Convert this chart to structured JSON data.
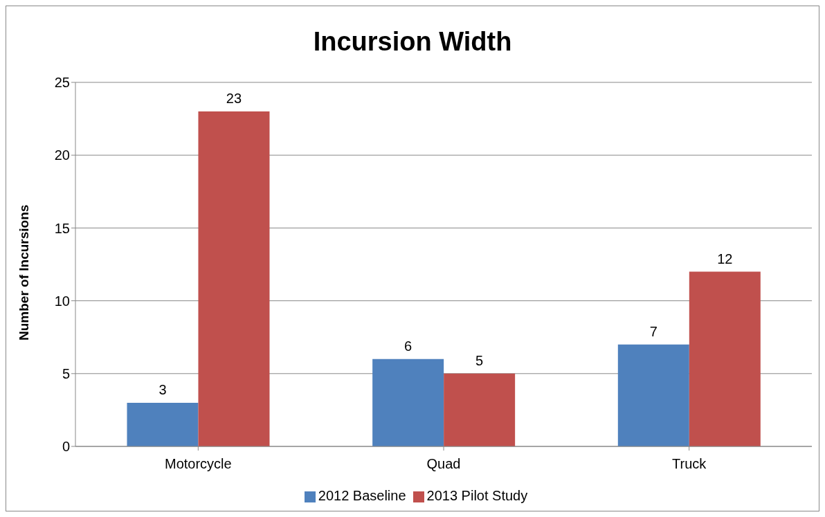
{
  "chart_data": {
    "type": "bar",
    "title": "Incursion Width",
    "ylabel": "Number of Incursions",
    "categories": [
      "Motorcycle",
      "Quad",
      "Truck"
    ],
    "series": [
      {
        "name": "2012 Baseline",
        "color": "#4f81bd",
        "values": [
          3,
          6,
          7
        ]
      },
      {
        "name": "2013 Pilot Study",
        "color": "#c0504d",
        "values": [
          23,
          5,
          12
        ]
      }
    ],
    "ylim": [
      0,
      25
    ],
    "yticks": [
      0,
      5,
      10,
      15,
      20,
      25
    ],
    "grid": "y",
    "legend": "bottom",
    "data_labels": true
  }
}
